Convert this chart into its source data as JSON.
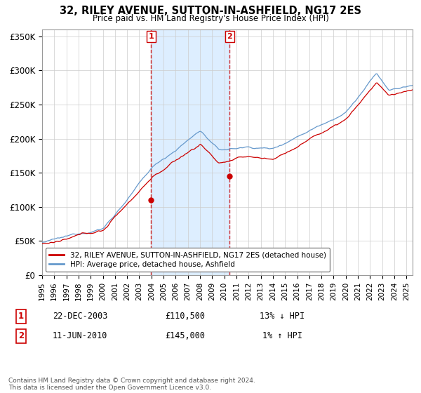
{
  "title": "32, RILEY AVENUE, SUTTON-IN-ASHFIELD, NG17 2ES",
  "subtitle": "Price paid vs. HM Land Registry's House Price Index (HPI)",
  "ylim": [
    0,
    360000
  ],
  "yticks": [
    0,
    50000,
    100000,
    150000,
    200000,
    250000,
    300000,
    350000
  ],
  "ytick_labels": [
    "£0",
    "£50K",
    "£100K",
    "£150K",
    "£200K",
    "£250K",
    "£300K",
    "£350K"
  ],
  "sale1": {
    "date_num": 2003.97,
    "price": 110500,
    "label": "1",
    "date_str": "22-DEC-2003",
    "pct": "13% ↓ HPI"
  },
  "sale2": {
    "date_num": 2010.44,
    "price": 145000,
    "label": "2",
    "date_str": "11-JUN-2010",
    "pct": "1% ↑ HPI"
  },
  "shade_color": "#ddeeff",
  "sale_line_color": "#cc0000",
  "hpi_line_color": "#6699cc",
  "marker_color": "#cc0000",
  "legend_box_sale": "32, RILEY AVENUE, SUTTON-IN-ASHFIELD, NG17 2ES (detached house)",
  "legend_box_hpi": "HPI: Average price, detached house, Ashfield",
  "footnote": "Contains HM Land Registry data © Crown copyright and database right 2024.\nThis data is licensed under the Open Government Licence v3.0.",
  "xmin": 1995,
  "xmax": 2025.5,
  "transactions": [
    {
      "num": "1",
      "date": "22-DEC-2003",
      "price": "£110,500",
      "pct": "13% ↓ HPI"
    },
    {
      "num": "2",
      "date": "11-JUN-2010",
      "price": "£145,000",
      "pct": "1% ↑ HPI"
    }
  ]
}
